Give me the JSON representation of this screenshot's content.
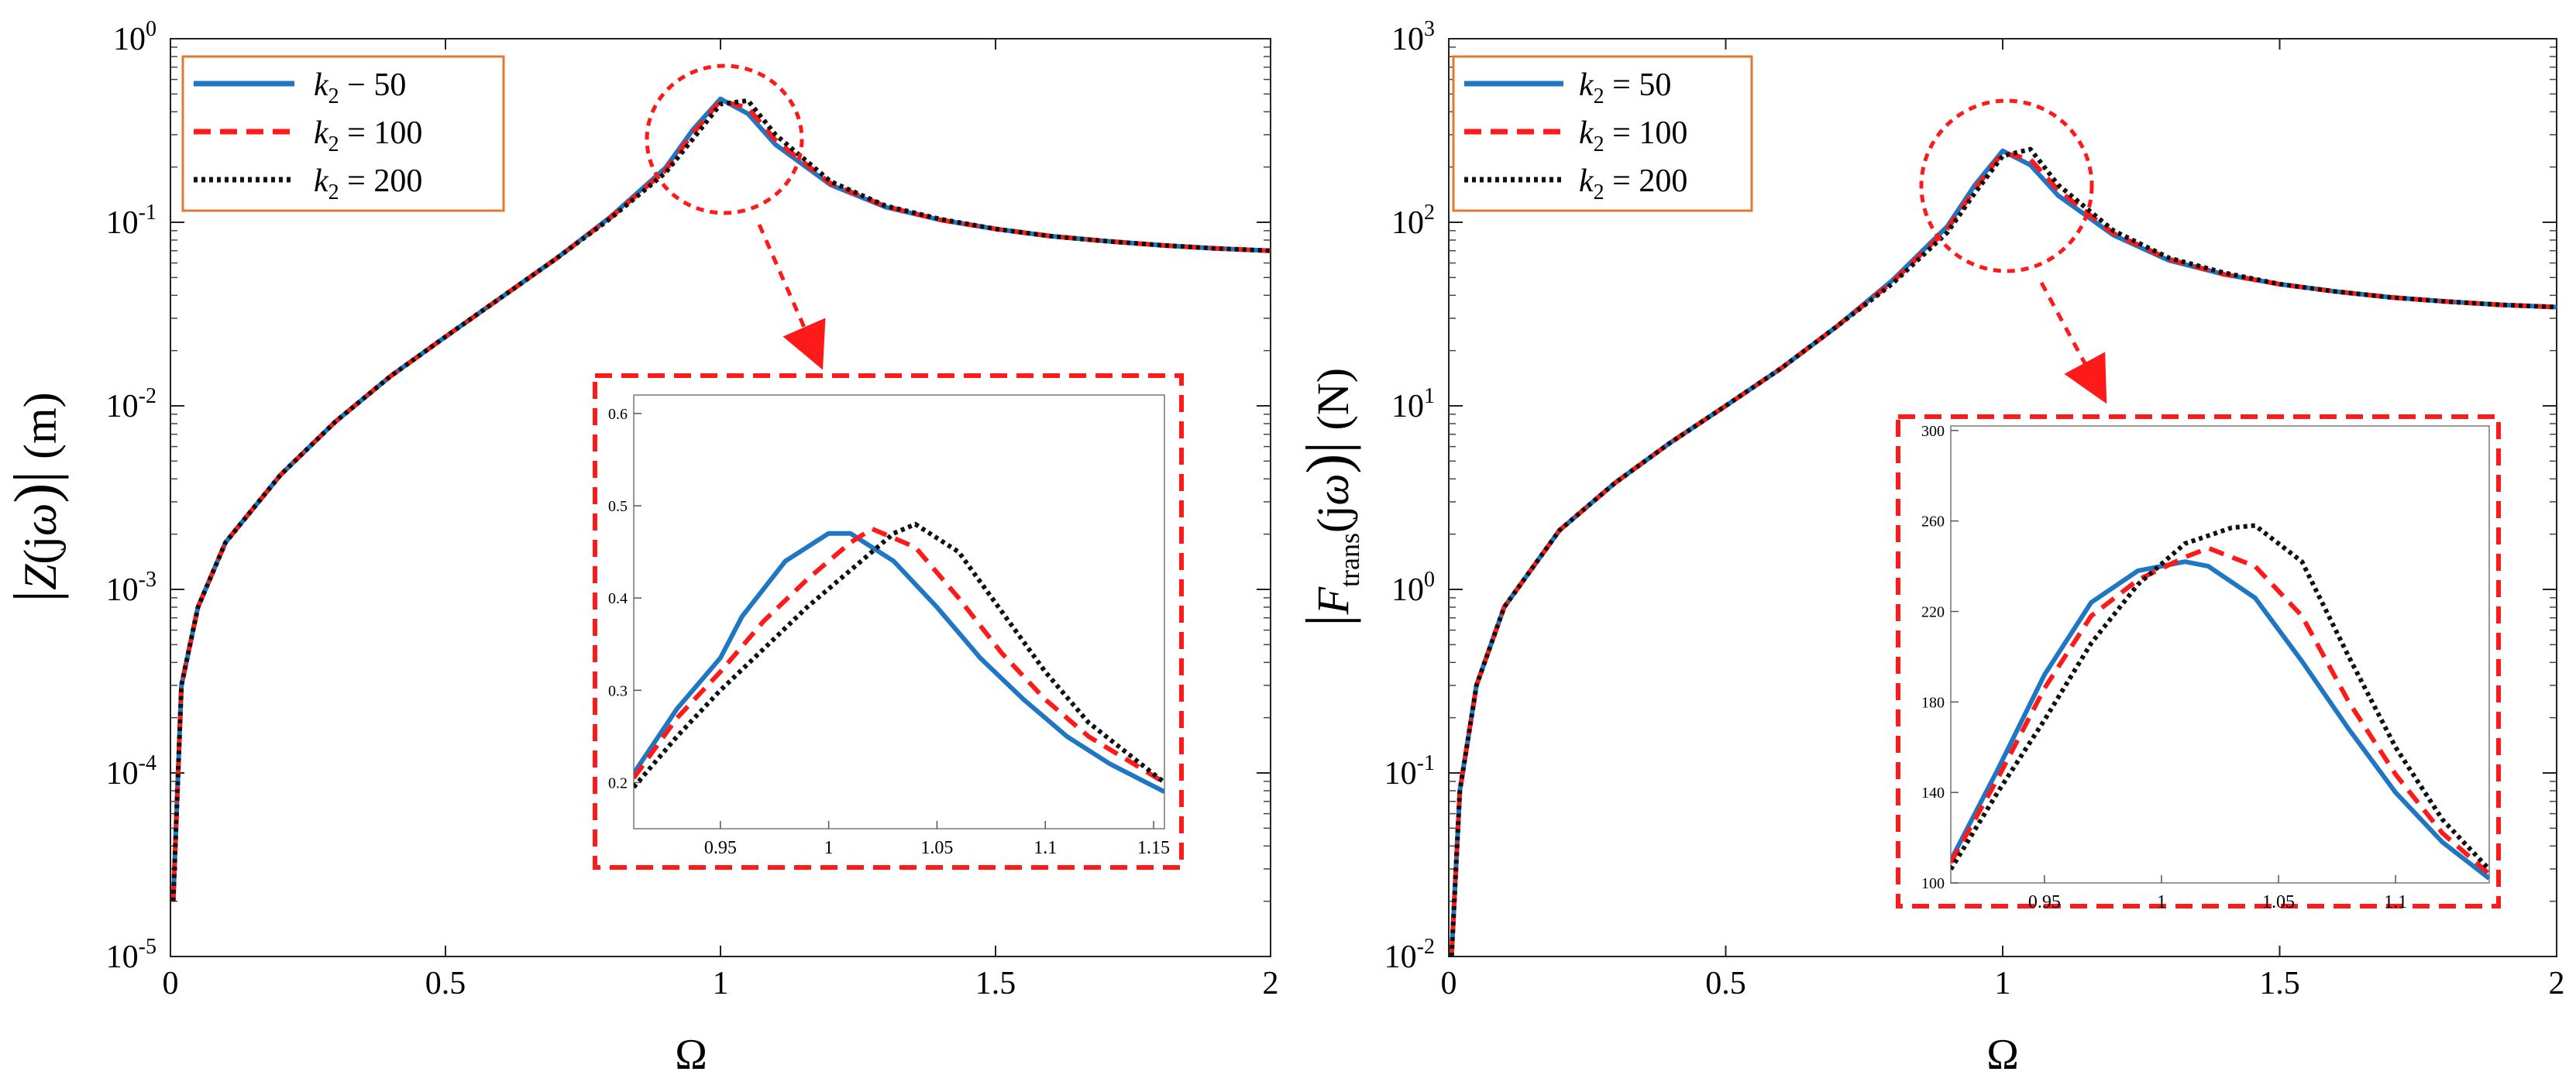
{
  "colors": {
    "k2_50": "#1f77c4",
    "k2_100": "#ff1a1a",
    "k2_200": "#111111",
    "legend_border": "#e07a30",
    "zoom": "#ff1a1a"
  },
  "chart_data": [
    {
      "type": "line",
      "name": "displacement",
      "yscale": "log",
      "xlabel": "Ω",
      "ylabel_parts": [
        "|",
        "Z",
        "(j",
        "ω",
        ")|",
        " (m)"
      ],
      "xlim": [
        0,
        2
      ],
      "ylim_exp": [
        -5,
        0
      ],
      "xticks": [
        "0",
        "0.5",
        "1",
        "1.5",
        "2"
      ],
      "yticks": [
        {
          "base": "10",
          "exp": "-5"
        },
        {
          "base": "10",
          "exp": "-4"
        },
        {
          "base": "10",
          "exp": "-3"
        },
        {
          "base": "10",
          "exp": "-2"
        },
        {
          "base": "10",
          "exp": "-1"
        },
        {
          "base": "10",
          "exp": "0"
        }
      ],
      "legend": [
        {
          "var": "k",
          "sub": "2",
          "rel": " − 50"
        },
        {
          "var": "k",
          "sub": "2",
          "rel": " = 100"
        },
        {
          "var": "k",
          "sub": "2",
          "rel": " = 200"
        }
      ],
      "series": [
        {
          "name": "k2 = 50",
          "x": [
            0.005,
            0.02,
            0.05,
            0.1,
            0.2,
            0.3,
            0.4,
            0.5,
            0.6,
            0.7,
            0.8,
            0.9,
            0.95,
            1.0,
            1.05,
            1.1,
            1.2,
            1.3,
            1.4,
            1.5,
            1.6,
            1.7,
            1.8,
            1.9,
            2.0
          ],
          "y": [
            2e-05,
            0.0003,
            0.0008,
            0.0018,
            0.0042,
            0.0082,
            0.0145,
            0.0238,
            0.0387,
            0.063,
            0.107,
            0.198,
            0.32,
            0.47,
            0.39,
            0.265,
            0.16,
            0.121,
            0.103,
            0.092,
            0.084,
            0.079,
            0.075,
            0.072,
            0.07
          ]
        },
        {
          "name": "k2 = 100",
          "x": [
            0.005,
            0.02,
            0.05,
            0.1,
            0.2,
            0.3,
            0.4,
            0.5,
            0.6,
            0.7,
            0.8,
            0.9,
            0.95,
            1.0,
            1.05,
            1.1,
            1.2,
            1.3,
            1.4,
            1.5,
            1.6,
            1.7,
            1.8,
            1.9,
            2.0
          ],
          "y": [
            2e-05,
            0.0003,
            0.0008,
            0.0018,
            0.0042,
            0.0082,
            0.0145,
            0.0238,
            0.0387,
            0.063,
            0.106,
            0.192,
            0.305,
            0.46,
            0.42,
            0.28,
            0.163,
            0.122,
            0.103,
            0.092,
            0.084,
            0.079,
            0.075,
            0.072,
            0.07
          ]
        },
        {
          "name": "k2 = 200",
          "x": [
            0.005,
            0.02,
            0.05,
            0.1,
            0.2,
            0.3,
            0.4,
            0.5,
            0.6,
            0.7,
            0.8,
            0.9,
            0.95,
            1.0,
            1.05,
            1.1,
            1.2,
            1.3,
            1.4,
            1.5,
            1.6,
            1.7,
            1.8,
            1.9,
            2.0
          ],
          "y": [
            2e-05,
            0.0003,
            0.0008,
            0.0018,
            0.0042,
            0.0082,
            0.0145,
            0.0238,
            0.0387,
            0.063,
            0.105,
            0.186,
            0.285,
            0.44,
            0.46,
            0.3,
            0.167,
            0.123,
            0.104,
            0.092,
            0.084,
            0.079,
            0.075,
            0.072,
            0.07
          ]
        }
      ],
      "inset": {
        "xlim": [
          0.91,
          1.155
        ],
        "ylim": [
          0.15,
          0.62
        ],
        "xticks": [
          "0.95",
          "1",
          "1.05",
          "1.1",
          "1.15"
        ],
        "yticks": [
          "0.2",
          "0.3",
          "0.4",
          "0.5",
          "0.6"
        ],
        "series": [
          {
            "name": "k2 = 50",
            "x": [
              0.91,
              0.93,
              0.95,
              0.96,
              0.98,
              1.0,
              1.01,
              1.03,
              1.05,
              1.07,
              1.09,
              1.11,
              1.13,
              1.155
            ],
            "y": [
              0.21,
              0.28,
              0.335,
              0.38,
              0.44,
              0.47,
              0.47,
              0.44,
              0.39,
              0.335,
              0.29,
              0.25,
              0.22,
              0.19
            ]
          },
          {
            "name": "k2 = 100",
            "x": [
              0.91,
              0.93,
              0.95,
              0.97,
              0.99,
              1.01,
              1.02,
              1.04,
              1.06,
              1.08,
              1.1,
              1.12,
              1.155
            ],
            "y": [
              0.205,
              0.27,
              0.32,
              0.375,
              0.42,
              0.46,
              0.475,
              0.455,
              0.4,
              0.34,
              0.29,
              0.25,
              0.2
            ]
          },
          {
            "name": "k2 = 200",
            "x": [
              0.91,
              0.93,
              0.95,
              0.97,
              0.99,
              1.01,
              1.03,
              1.04,
              1.06,
              1.08,
              1.1,
              1.12,
              1.155
            ],
            "y": [
              0.195,
              0.25,
              0.3,
              0.345,
              0.39,
              0.43,
              0.47,
              0.48,
              0.45,
              0.385,
              0.32,
              0.265,
              0.2
            ]
          }
        ]
      }
    },
    {
      "type": "line",
      "name": "transmitted-force",
      "yscale": "log",
      "xlabel": "Ω",
      "ylabel_parts": [
        "|",
        "F",
        "trans",
        "(j",
        "ω",
        ")|",
        " (N)"
      ],
      "xlim": [
        0,
        2
      ],
      "ylim_exp": [
        -2,
        3
      ],
      "xticks": [
        "0",
        "0.5",
        "1",
        "1.5",
        "2"
      ],
      "yticks": [
        {
          "base": "10",
          "exp": "-2"
        },
        {
          "base": "10",
          "exp": "-1"
        },
        {
          "base": "10",
          "exp": "0"
        },
        {
          "base": "10",
          "exp": "1"
        },
        {
          "base": "10",
          "exp": "2"
        },
        {
          "base": "10",
          "exp": "3"
        }
      ],
      "legend": [
        {
          "var": "k",
          "sub": "2",
          "rel": " = 50"
        },
        {
          "var": "k",
          "sub": "2",
          "rel": " = 100"
        },
        {
          "var": "k",
          "sub": "2",
          "rel": " = 200"
        }
      ],
      "series": [
        {
          "name": "k2 = 50",
          "x": [
            0.005,
            0.02,
            0.05,
            0.1,
            0.2,
            0.3,
            0.4,
            0.5,
            0.6,
            0.7,
            0.8,
            0.9,
            0.95,
            1.0,
            1.05,
            1.1,
            1.2,
            1.3,
            1.4,
            1.5,
            1.6,
            1.7,
            1.8,
            1.9,
            2.0
          ],
          "y": [
            0.01,
            0.08,
            0.3,
            0.8,
            2.1,
            3.8,
            6.3,
            10,
            16,
            27,
            48,
            95,
            160,
            245,
            205,
            140,
            85,
            62,
            52,
            46,
            42,
            39,
            37,
            35.5,
            34.5
          ]
        },
        {
          "name": "k2 = 100",
          "x": [
            0.005,
            0.02,
            0.05,
            0.1,
            0.2,
            0.3,
            0.4,
            0.5,
            0.6,
            0.7,
            0.8,
            0.9,
            0.95,
            1.0,
            1.05,
            1.1,
            1.2,
            1.3,
            1.4,
            1.5,
            1.6,
            1.7,
            1.8,
            1.9,
            2.0
          ],
          "y": [
            0.01,
            0.08,
            0.3,
            0.8,
            2.1,
            3.8,
            6.3,
            10,
            16,
            27,
            47,
            92,
            152,
            240,
            220,
            150,
            87,
            63,
            52,
            46,
            42,
            39,
            37,
            35.5,
            34.5
          ]
        },
        {
          "name": "k2 = 200",
          "x": [
            0.005,
            0.02,
            0.05,
            0.1,
            0.2,
            0.3,
            0.4,
            0.5,
            0.6,
            0.7,
            0.8,
            0.9,
            0.95,
            1.0,
            1.05,
            1.1,
            1.2,
            1.3,
            1.4,
            1.5,
            1.6,
            1.7,
            1.8,
            1.9,
            2.0
          ],
          "y": [
            0.01,
            0.08,
            0.3,
            0.8,
            2.1,
            3.8,
            6.3,
            10,
            16,
            27,
            46,
            88,
            145,
            230,
            250,
            160,
            90,
            64,
            53,
            46,
            42,
            39,
            37,
            35.5,
            34.5
          ]
        }
      ],
      "inset": {
        "xlim": [
          0.91,
          1.14
        ],
        "ylim": [
          100,
          302
        ],
        "xticks": [
          "0.95",
          "1",
          "1.05",
          "1.1"
        ],
        "yticks": [
          "100",
          "140",
          "180",
          "220",
          "260",
          "300"
        ],
        "series": [
          {
            "name": "k2 = 50",
            "x": [
              0.91,
              0.93,
              0.95,
              0.97,
              0.99,
              1.0,
              1.01,
              1.02,
              1.04,
              1.06,
              1.08,
              1.1,
              1.12,
              1.14
            ],
            "y": [
              110,
              150,
              192,
              224,
              238,
              240,
              242,
              240,
              226,
              198,
              168,
              140,
              118,
              102
            ]
          },
          {
            "name": "k2 = 100",
            "x": [
              0.91,
              0.93,
              0.95,
              0.97,
              0.99,
              1.01,
              1.02,
              1.04,
              1.06,
              1.08,
              1.1,
              1.12,
              1.14
            ],
            "y": [
              109,
              146,
              186,
              218,
              234,
              244,
              248,
              240,
              218,
              180,
              148,
              122,
              104
            ]
          },
          {
            "name": "k2 = 200",
            "x": [
              0.91,
              0.93,
              0.95,
              0.97,
              0.99,
              1.01,
              1.03,
              1.04,
              1.06,
              1.08,
              1.1,
              1.12,
              1.14
            ],
            "y": [
              106,
              140,
              172,
              206,
              232,
              250,
              257,
              258,
              242,
              200,
              160,
              128,
              106
            ]
          }
        ]
      }
    }
  ]
}
